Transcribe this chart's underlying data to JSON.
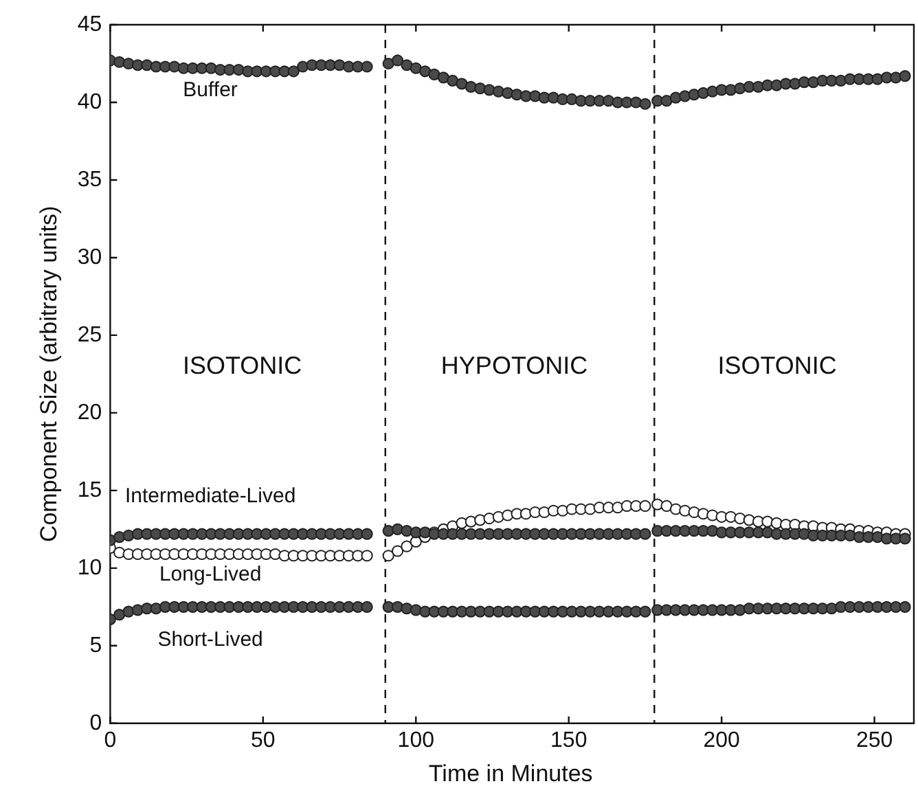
{
  "chart_data": {
    "type": "scatter",
    "xlabel": "Time in Minutes",
    "ylabel": "Component Size (arbitrary units)",
    "x": [
      0,
      3,
      6,
      9,
      12,
      15,
      18,
      21,
      24,
      27,
      30,
      33,
      36,
      39,
      42,
      45,
      48,
      51,
      54,
      57,
      60,
      63,
      66,
      69,
      72,
      75,
      78,
      81,
      84,
      91,
      94,
      97,
      100,
      103,
      106,
      109,
      112,
      115,
      118,
      121,
      124,
      127,
      130,
      133,
      136,
      139,
      142,
      145,
      148,
      151,
      154,
      157,
      160,
      163,
      166,
      169,
      172,
      175,
      179,
      182,
      185,
      188,
      191,
      194,
      197,
      200,
      203,
      206,
      209,
      212,
      215,
      218,
      221,
      224,
      227,
      230,
      233,
      236,
      239,
      242,
      245,
      248,
      251,
      254,
      257,
      260
    ],
    "series": [
      {
        "name": "Buffer",
        "color": "#4a4a4a",
        "values": [
          42.7,
          42.6,
          42.5,
          42.4,
          42.4,
          42.3,
          42.3,
          42.3,
          42.2,
          42.2,
          42.2,
          42.2,
          42.1,
          42.1,
          42.1,
          42.0,
          42.0,
          42.0,
          42.0,
          42.0,
          42.0,
          42.3,
          42.4,
          42.4,
          42.4,
          42.4,
          42.3,
          42.3,
          42.3,
          42.5,
          42.7,
          42.4,
          42.2,
          42.0,
          41.8,
          41.6,
          41.4,
          41.2,
          41.0,
          40.9,
          40.8,
          40.7,
          40.6,
          40.5,
          40.4,
          40.4,
          40.3,
          40.3,
          40.2,
          40.2,
          40.1,
          40.1,
          40.1,
          40.1,
          40.0,
          40.0,
          40.0,
          39.9,
          40.1,
          40.1,
          40.3,
          40.4,
          40.5,
          40.6,
          40.7,
          40.8,
          40.8,
          40.9,
          41.0,
          41.0,
          41.1,
          41.1,
          41.2,
          41.2,
          41.3,
          41.3,
          41.4,
          41.4,
          41.4,
          41.5,
          41.5,
          41.5,
          41.5,
          41.6,
          41.6,
          41.7
        ]
      },
      {
        "name": "Intermediate-Lived",
        "color": "#4a4a4a",
        "values": [
          11.8,
          12.0,
          12.1,
          12.2,
          12.2,
          12.2,
          12.2,
          12.2,
          12.2,
          12.2,
          12.2,
          12.2,
          12.2,
          12.2,
          12.2,
          12.2,
          12.2,
          12.2,
          12.2,
          12.2,
          12.2,
          12.2,
          12.2,
          12.2,
          12.2,
          12.2,
          12.2,
          12.2,
          12.2,
          12.4,
          12.5,
          12.4,
          12.3,
          12.3,
          12.2,
          12.2,
          12.2,
          12.2,
          12.2,
          12.2,
          12.2,
          12.2,
          12.2,
          12.2,
          12.2,
          12.2,
          12.2,
          12.2,
          12.2,
          12.2,
          12.2,
          12.2,
          12.2,
          12.2,
          12.2,
          12.2,
          12.2,
          12.2,
          12.4,
          12.4,
          12.4,
          12.4,
          12.4,
          12.4,
          12.4,
          12.3,
          12.3,
          12.3,
          12.3,
          12.3,
          12.3,
          12.2,
          12.2,
          12.2,
          12.2,
          12.1,
          12.1,
          12.1,
          12.1,
          12.1,
          12.0,
          12.0,
          12.0,
          11.9,
          11.9,
          11.9
        ]
      },
      {
        "name": "Long-Lived",
        "color": "#ffffff",
        "values": [
          11.3,
          11.0,
          10.9,
          10.9,
          10.9,
          10.9,
          10.9,
          10.9,
          10.9,
          10.9,
          10.9,
          10.9,
          10.9,
          10.9,
          10.9,
          10.9,
          10.9,
          10.9,
          10.9,
          10.8,
          10.8,
          10.8,
          10.8,
          10.8,
          10.8,
          10.8,
          10.8,
          10.8,
          10.8,
          10.8,
          11.1,
          11.4,
          11.7,
          12.0,
          12.3,
          12.5,
          12.7,
          12.9,
          13.0,
          13.1,
          13.2,
          13.3,
          13.4,
          13.5,
          13.5,
          13.6,
          13.6,
          13.7,
          13.7,
          13.8,
          13.8,
          13.8,
          13.9,
          13.9,
          13.9,
          14.0,
          14.0,
          14.0,
          14.1,
          14.0,
          13.8,
          13.7,
          13.6,
          13.5,
          13.4,
          13.3,
          13.3,
          13.2,
          13.1,
          13.0,
          13.0,
          12.9,
          12.8,
          12.8,
          12.7,
          12.7,
          12.6,
          12.6,
          12.5,
          12.5,
          12.4,
          12.4,
          12.3,
          12.3,
          12.2,
          12.2
        ]
      },
      {
        "name": "Short-Lived",
        "color": "#4a4a4a",
        "values": [
          6.7,
          7.0,
          7.2,
          7.3,
          7.4,
          7.4,
          7.5,
          7.5,
          7.5,
          7.5,
          7.5,
          7.5,
          7.5,
          7.5,
          7.5,
          7.5,
          7.5,
          7.5,
          7.5,
          7.5,
          7.5,
          7.5,
          7.5,
          7.5,
          7.5,
          7.5,
          7.5,
          7.5,
          7.5,
          7.5,
          7.5,
          7.4,
          7.3,
          7.2,
          7.2,
          7.2,
          7.2,
          7.2,
          7.2,
          7.2,
          7.2,
          7.2,
          7.2,
          7.2,
          7.2,
          7.2,
          7.2,
          7.2,
          7.2,
          7.2,
          7.2,
          7.2,
          7.2,
          7.2,
          7.2,
          7.2,
          7.2,
          7.2,
          7.3,
          7.3,
          7.3,
          7.3,
          7.3,
          7.3,
          7.3,
          7.3,
          7.3,
          7.3,
          7.4,
          7.4,
          7.4,
          7.4,
          7.4,
          7.4,
          7.4,
          7.4,
          7.4,
          7.4,
          7.5,
          7.5,
          7.5,
          7.5,
          7.5,
          7.5,
          7.5,
          7.5
        ]
      }
    ],
    "marker": "circle",
    "xlim": [
      0,
      262
    ],
    "ylim": [
      0,
      45
    ],
    "xticks": [
      0,
      50,
      100,
      150,
      200,
      250
    ],
    "yticks": [
      0,
      5,
      10,
      15,
      20,
      25,
      30,
      35,
      40,
      45
    ],
    "ref_lines": [
      {
        "axis": "x",
        "value": 90,
        "line_style": "dashed"
      },
      {
        "axis": "x",
        "value": 178,
        "line_style": "dashed"
      }
    ],
    "annotations": [
      "ISOTONIC",
      "HYPOTONIC",
      "ISOTONIC"
    ],
    "grid": false,
    "legend": false
  }
}
